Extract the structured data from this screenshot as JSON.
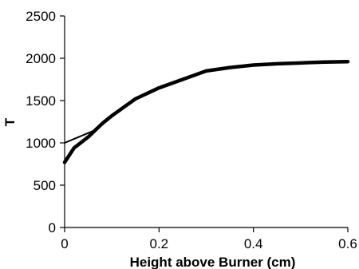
{
  "chart_data": {
    "type": "line",
    "title": "",
    "xlabel": "Height above Burner (cm)",
    "ylabel": "T",
    "xlim": [
      0,
      0.6
    ],
    "ylim": [
      0,
      2500
    ],
    "x_ticks": [
      "0",
      "0.2",
      "0.4",
      "0.6"
    ],
    "y_ticks": [
      "0",
      "500",
      "1000",
      "1500",
      "2000",
      "2500"
    ],
    "grid": false,
    "legend": "none",
    "series": [
      {
        "style": "thin",
        "color": "#000000",
        "points": [
          [
            0,
            1000
          ],
          [
            0.03,
            1070
          ],
          [
            0.06,
            1140
          ],
          [
            0.09,
            1290
          ],
          [
            0.12,
            1400
          ],
          [
            0.15,
            1520
          ],
          [
            0.2,
            1650
          ],
          [
            0.25,
            1750
          ],
          [
            0.3,
            1850
          ],
          [
            0.35,
            1890
          ],
          [
            0.4,
            1920
          ],
          [
            0.45,
            1935
          ],
          [
            0.5,
            1945
          ],
          [
            0.55,
            1955
          ],
          [
            0.6,
            1960
          ]
        ]
      },
      {
        "style": "thick",
        "color": "#000000",
        "points": [
          [
            0,
            770
          ],
          [
            0.02,
            940
          ],
          [
            0.05,
            1070
          ],
          [
            0.08,
            1230
          ],
          [
            0.1,
            1320
          ],
          [
            0.12,
            1400
          ],
          [
            0.15,
            1520
          ],
          [
            0.2,
            1650
          ],
          [
            0.25,
            1750
          ],
          [
            0.3,
            1850
          ],
          [
            0.35,
            1890
          ],
          [
            0.4,
            1920
          ],
          [
            0.45,
            1935
          ],
          [
            0.5,
            1945
          ],
          [
            0.55,
            1955
          ],
          [
            0.6,
            1960
          ]
        ]
      }
    ]
  }
}
